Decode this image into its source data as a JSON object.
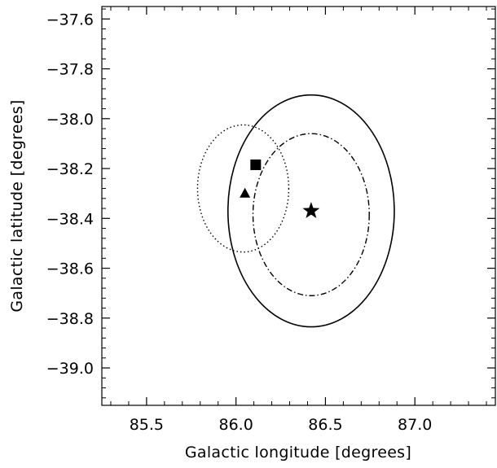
{
  "chart_data": {
    "type": "scatter",
    "title": "",
    "xlabel": "Galactic longitude [degrees]",
    "ylabel": "Galactic latitude [degrees]",
    "xlim": [
      85.25,
      87.45
    ],
    "ylim": [
      -39.15,
      -37.55
    ],
    "xticks": [
      85.5,
      86.0,
      86.5,
      87.0
    ],
    "xtick_labels": [
      "85.5",
      "86.0",
      "86.5",
      "87.0"
    ],
    "yticks": [
      -37.6,
      -37.8,
      -38.0,
      -38.2,
      -38.4,
      -38.6,
      -38.8,
      -39.0
    ],
    "ytick_labels": [
      "−37.6",
      "−37.8",
      "−38.0",
      "−38.2",
      "−38.4",
      "−38.6",
      "−38.8",
      "−39.0"
    ],
    "grid": false,
    "legend": null,
    "circles": [
      {
        "style": "solid",
        "center": [
          86.42,
          -38.37
        ],
        "radius": 0.465
      },
      {
        "style": "dotted",
        "center": [
          86.04,
          -38.28
        ],
        "radius": 0.255
      },
      {
        "style": "dash-dot",
        "center": [
          86.42,
          -38.385
        ],
        "radius": 0.325
      }
    ],
    "markers": [
      {
        "symbol": "star",
        "x": 86.42,
        "y": -38.37
      },
      {
        "symbol": "square",
        "x": 86.11,
        "y": -38.185
      },
      {
        "symbol": "triangle",
        "x": 86.05,
        "y": -38.3
      }
    ]
  }
}
